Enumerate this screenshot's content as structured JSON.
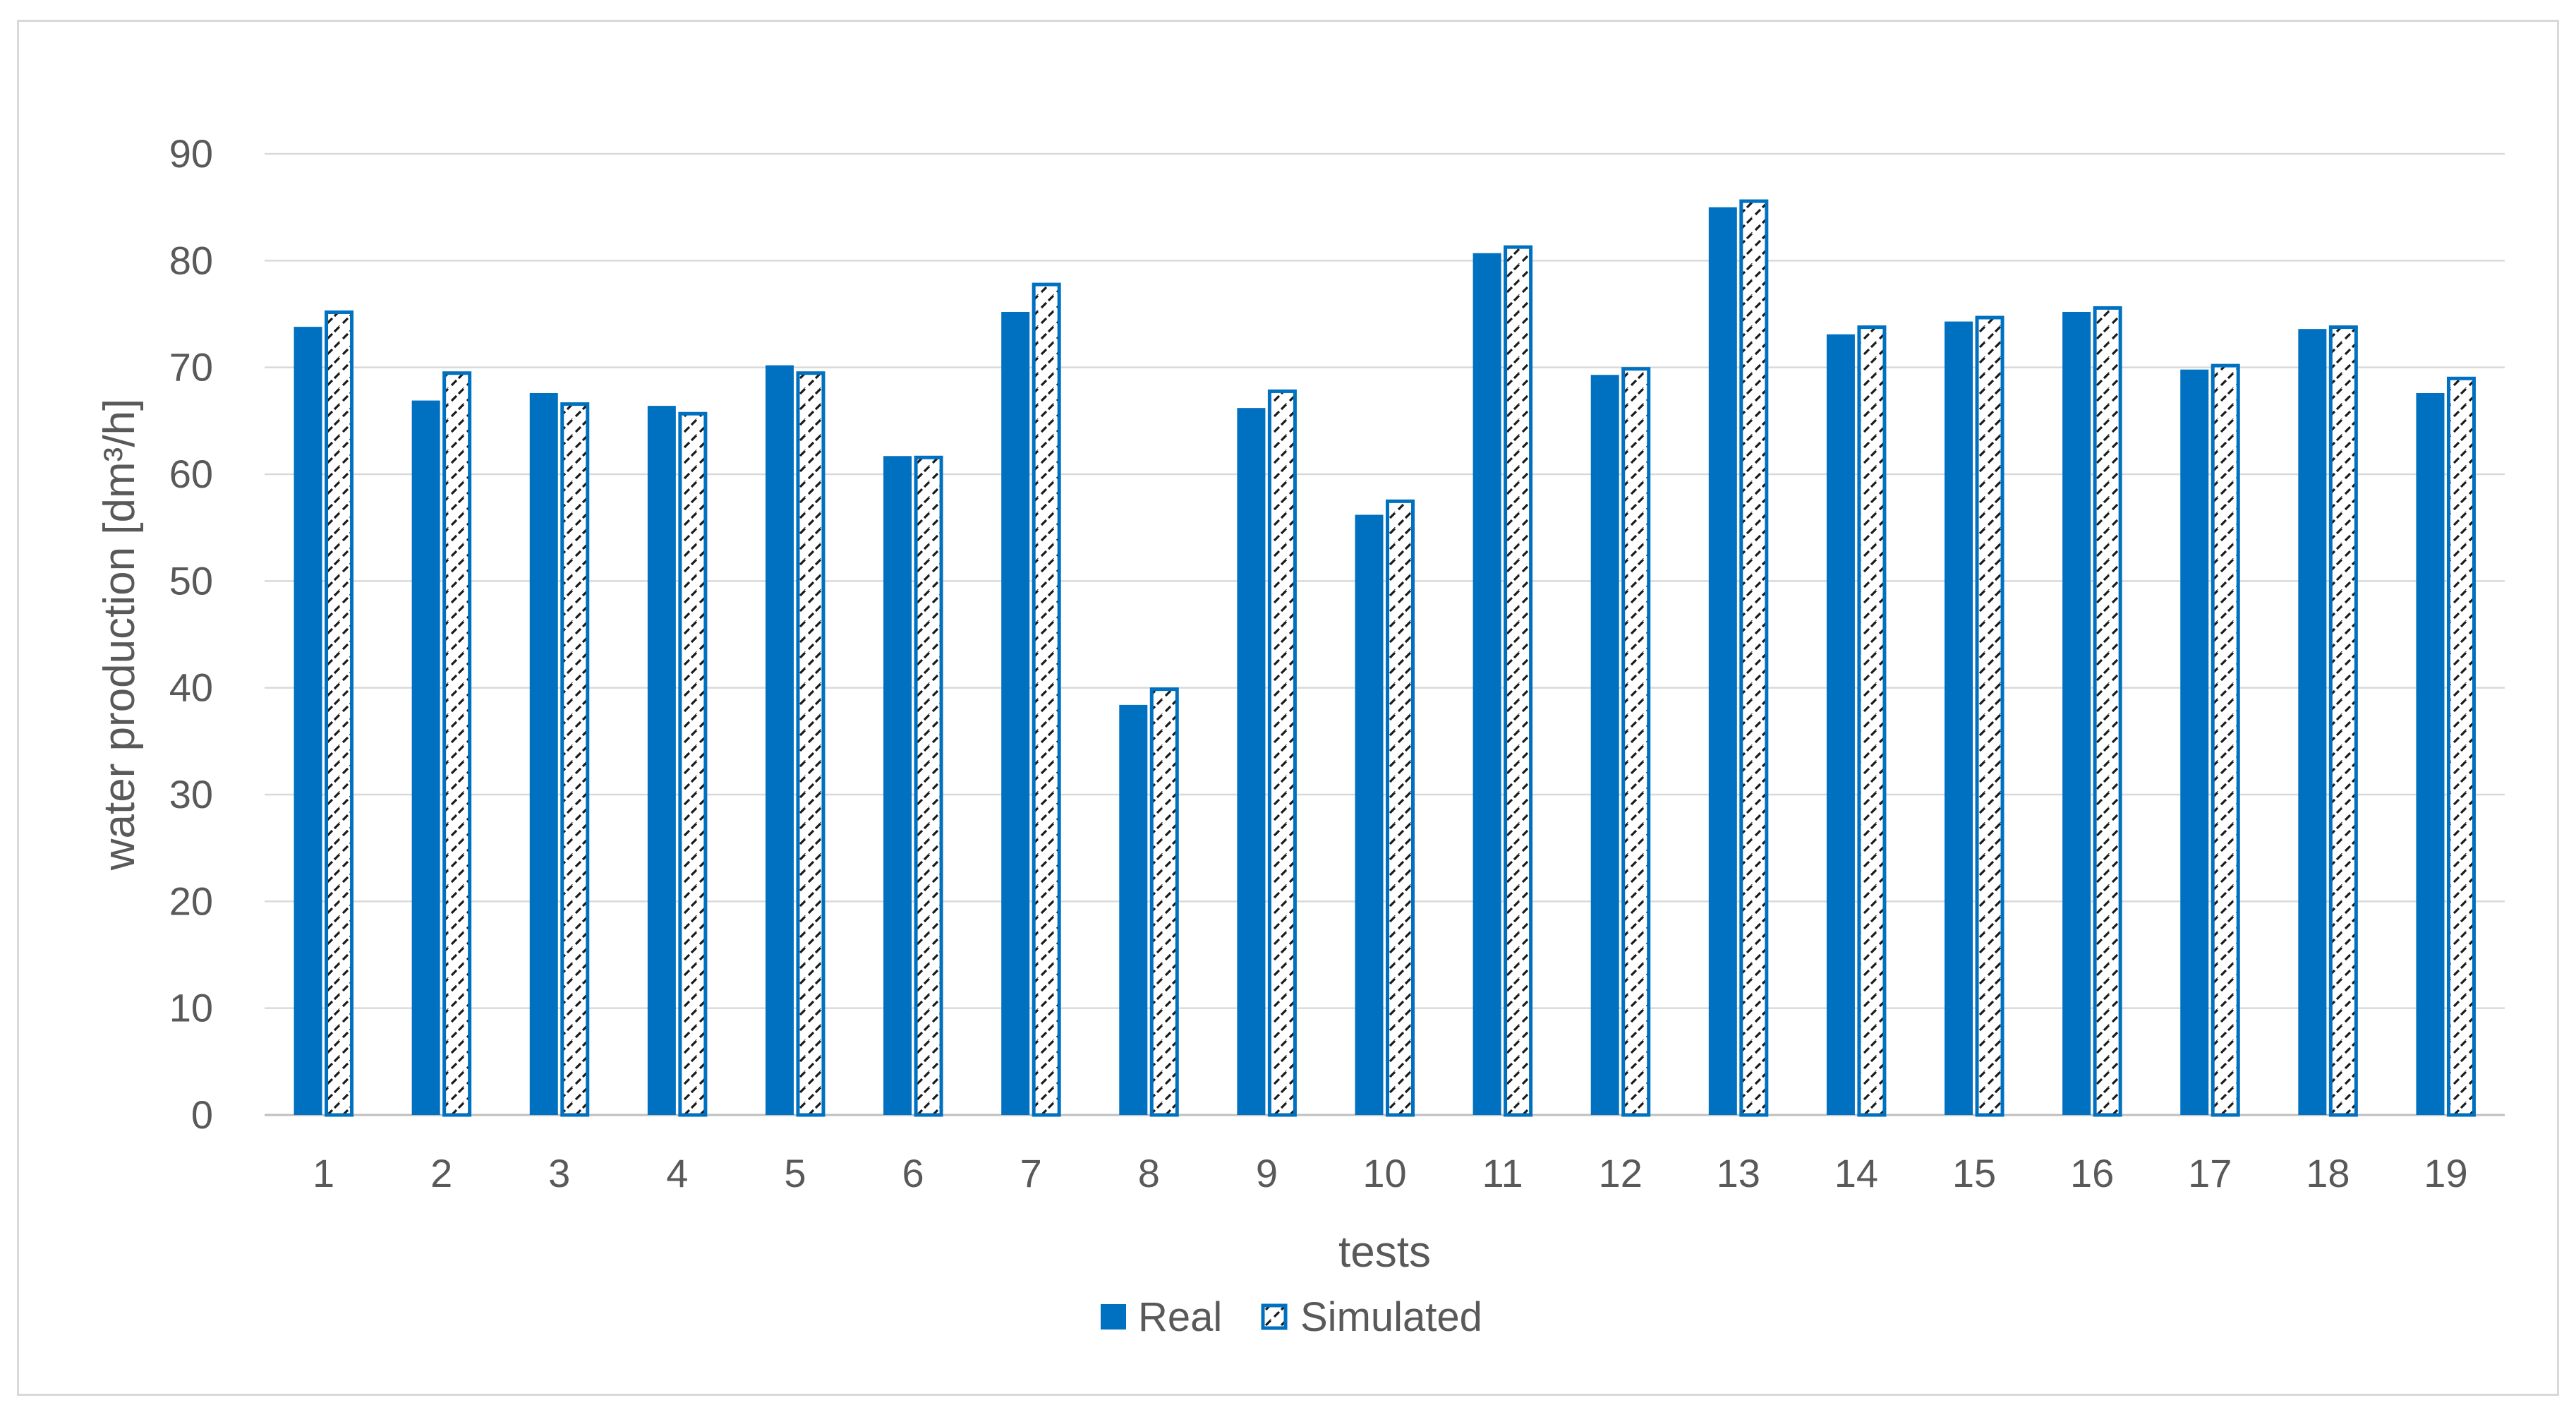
{
  "chart_data": {
    "type": "bar",
    "xlabel": "tests",
    "ylabel": "water production [dm³/h]",
    "ylim": [
      0,
      90
    ],
    "yticks": [
      0,
      10,
      20,
      30,
      40,
      50,
      60,
      70,
      80,
      90
    ],
    "grid": true,
    "legend_position": "bottom",
    "categories": [
      "1",
      "2",
      "3",
      "4",
      "5",
      "6",
      "7",
      "8",
      "9",
      "10",
      "11",
      "12",
      "13",
      "14",
      "15",
      "16",
      "17",
      "18",
      "19"
    ],
    "series": [
      {
        "name": "Real",
        "style": "solid",
        "color": "#0070c0",
        "values": [
          73.8,
          66.9,
          67.6,
          66.4,
          70.2,
          61.7,
          75.2,
          38.4,
          66.2,
          56.2,
          80.7,
          69.3,
          85.0,
          73.1,
          74.3,
          75.2,
          69.8,
          73.6,
          67.6
        ]
      },
      {
        "name": "Simulated",
        "style": "hatched",
        "color": "#0070c0",
        "values": [
          75.3,
          69.6,
          66.7,
          65.8,
          69.6,
          61.7,
          77.9,
          40.0,
          67.9,
          57.6,
          81.4,
          70.0,
          85.7,
          73.9,
          74.8,
          75.7,
          70.3,
          73.9,
          69.1
        ]
      }
    ]
  }
}
